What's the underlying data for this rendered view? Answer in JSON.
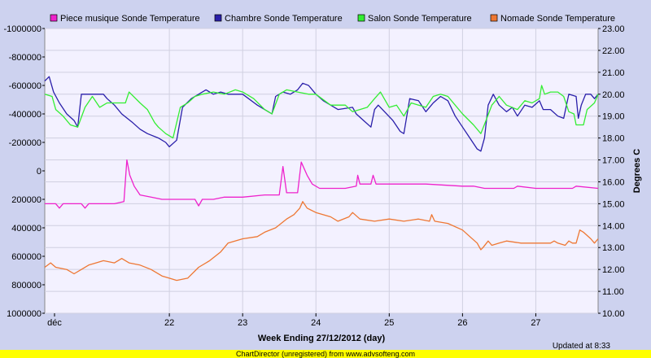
{
  "chart_data": {
    "type": "line",
    "title": "",
    "xlabel": "Week Ending 27/12/2012 (day)",
    "ylabel_left": "",
    "ylabel_right": "Degrees C",
    "x_ticks": [
      "déc",
      "22",
      "23",
      "24",
      "25",
      "26",
      "27"
    ],
    "x_range_days": [
      0.3,
      7.85
    ],
    "y_left_ticks": [
      "-1000000",
      "-800000",
      "-600000",
      "-400000",
      "-200000",
      "0",
      "200000",
      "400000",
      "600000",
      "800000",
      "1000000"
    ],
    "y_left_range": [
      -1000000,
      1000000
    ],
    "y_left_reversed": true,
    "y_right_ticks": [
      "10.00",
      "11.00",
      "12.00",
      "13.00",
      "14.00",
      "15.00",
      "16.00",
      "17.00",
      "18.00",
      "19.00",
      "20.00",
      "21.00",
      "22.00",
      "23.00"
    ],
    "y_right_range": [
      10,
      23
    ],
    "grid": true,
    "legend_position": "top",
    "updated_text": "Updated at 8:33",
    "series": [
      {
        "name": "Piece musique Sonde Temperature",
        "color": "#ee22cc",
        "points": [
          [
            0.3,
            15.0
          ],
          [
            0.45,
            15.0
          ],
          [
            0.5,
            14.8
          ],
          [
            0.55,
            15.0
          ],
          [
            0.8,
            15.0
          ],
          [
            0.85,
            14.8
          ],
          [
            0.9,
            15.0
          ],
          [
            1.1,
            15.0
          ],
          [
            1.25,
            15.0
          ],
          [
            1.38,
            15.1
          ],
          [
            1.42,
            17.0
          ],
          [
            1.46,
            16.3
          ],
          [
            1.52,
            15.8
          ],
          [
            1.6,
            15.4
          ],
          [
            1.75,
            15.3
          ],
          [
            1.9,
            15.2
          ],
          [
            2.2,
            15.2
          ],
          [
            2.35,
            15.2
          ],
          [
            2.4,
            14.9
          ],
          [
            2.45,
            15.2
          ],
          [
            2.6,
            15.2
          ],
          [
            2.75,
            15.3
          ],
          [
            3.0,
            15.3
          ],
          [
            3.3,
            15.4
          ],
          [
            3.5,
            15.4
          ],
          [
            3.55,
            16.7
          ],
          [
            3.6,
            15.5
          ],
          [
            3.75,
            15.5
          ],
          [
            3.8,
            16.9
          ],
          [
            3.88,
            16.3
          ],
          [
            3.95,
            15.9
          ],
          [
            4.05,
            15.7
          ],
          [
            4.4,
            15.7
          ],
          [
            4.55,
            15.8
          ],
          [
            4.57,
            16.3
          ],
          [
            4.6,
            15.9
          ],
          [
            4.75,
            15.9
          ],
          [
            4.78,
            16.3
          ],
          [
            4.82,
            15.9
          ],
          [
            5.0,
            15.9
          ],
          [
            5.5,
            15.9
          ],
          [
            6.0,
            15.8
          ],
          [
            6.15,
            15.8
          ],
          [
            6.3,
            15.7
          ],
          [
            6.7,
            15.7
          ],
          [
            6.75,
            15.8
          ],
          [
            7.0,
            15.7
          ],
          [
            7.2,
            15.7
          ],
          [
            7.5,
            15.7
          ],
          [
            7.55,
            15.8
          ],
          [
            7.85,
            15.7
          ]
        ]
      },
      {
        "name": "Chambre Sonde Temperature",
        "color": "#2a1faa",
        "points": [
          [
            0.3,
            20.6
          ],
          [
            0.36,
            20.8
          ],
          [
            0.42,
            20.1
          ],
          [
            0.5,
            19.6
          ],
          [
            0.6,
            19.1
          ],
          [
            0.7,
            18.8
          ],
          [
            0.75,
            18.5
          ],
          [
            0.8,
            20.0
          ],
          [
            0.95,
            20.0
          ],
          [
            1.1,
            20.0
          ],
          [
            1.15,
            19.8
          ],
          [
            1.25,
            19.5
          ],
          [
            1.35,
            19.1
          ],
          [
            1.5,
            18.7
          ],
          [
            1.6,
            18.4
          ],
          [
            1.7,
            18.2
          ],
          [
            1.85,
            18.0
          ],
          [
            1.95,
            17.8
          ],
          [
            2.0,
            17.6
          ],
          [
            2.1,
            17.9
          ],
          [
            2.18,
            19.4
          ],
          [
            2.3,
            19.8
          ],
          [
            2.5,
            20.2
          ],
          [
            2.6,
            20.0
          ],
          [
            2.7,
            20.1
          ],
          [
            2.8,
            20.0
          ],
          [
            3.0,
            20.0
          ],
          [
            3.2,
            19.5
          ],
          [
            3.35,
            19.2
          ],
          [
            3.4,
            19.1
          ],
          [
            3.45,
            19.9
          ],
          [
            3.55,
            20.1
          ],
          [
            3.65,
            20.0
          ],
          [
            3.75,
            20.2
          ],
          [
            3.82,
            20.5
          ],
          [
            3.9,
            20.4
          ],
          [
            4.0,
            20.0
          ],
          [
            4.1,
            19.7
          ],
          [
            4.3,
            19.3
          ],
          [
            4.5,
            19.4
          ],
          [
            4.55,
            19.1
          ],
          [
            4.65,
            18.8
          ],
          [
            4.75,
            18.5
          ],
          [
            4.8,
            19.3
          ],
          [
            4.85,
            19.5
          ],
          [
            5.05,
            18.8
          ],
          [
            5.15,
            18.3
          ],
          [
            5.2,
            18.2
          ],
          [
            5.28,
            19.8
          ],
          [
            5.4,
            19.7
          ],
          [
            5.5,
            19.2
          ],
          [
            5.6,
            19.6
          ],
          [
            5.7,
            19.9
          ],
          [
            5.8,
            19.7
          ],
          [
            5.9,
            19.0
          ],
          [
            6.0,
            18.5
          ],
          [
            6.1,
            18.0
          ],
          [
            6.2,
            17.5
          ],
          [
            6.25,
            17.4
          ],
          [
            6.3,
            18.0
          ],
          [
            6.35,
            19.5
          ],
          [
            6.42,
            20.0
          ],
          [
            6.5,
            19.5
          ],
          [
            6.6,
            19.2
          ],
          [
            6.68,
            19.4
          ],
          [
            6.75,
            19.0
          ],
          [
            6.85,
            19.5
          ],
          [
            6.95,
            19.4
          ],
          [
            7.05,
            19.7
          ],
          [
            7.1,
            19.3
          ],
          [
            7.2,
            19.3
          ],
          [
            7.3,
            19.0
          ],
          [
            7.38,
            18.9
          ],
          [
            7.45,
            20.0
          ],
          [
            7.55,
            19.9
          ],
          [
            7.58,
            18.9
          ],
          [
            7.62,
            19.5
          ],
          [
            7.68,
            20.0
          ],
          [
            7.75,
            20.0
          ],
          [
            7.8,
            19.8
          ],
          [
            7.85,
            20.0
          ]
        ]
      },
      {
        "name": "Salon Sonde Temperature",
        "color": "#33ee33",
        "points": [
          [
            0.3,
            20.0
          ],
          [
            0.4,
            19.9
          ],
          [
            0.45,
            19.3
          ],
          [
            0.55,
            19.0
          ],
          [
            0.65,
            18.6
          ],
          [
            0.75,
            18.5
          ],
          [
            0.85,
            19.4
          ],
          [
            0.95,
            19.9
          ],
          [
            1.05,
            19.4
          ],
          [
            1.15,
            19.6
          ],
          [
            1.3,
            19.6
          ],
          [
            1.4,
            19.6
          ],
          [
            1.45,
            20.1
          ],
          [
            1.6,
            19.6
          ],
          [
            1.7,
            19.3
          ],
          [
            1.8,
            18.7
          ],
          [
            1.85,
            18.5
          ],
          [
            1.95,
            18.2
          ],
          [
            2.05,
            18.0
          ],
          [
            2.15,
            19.4
          ],
          [
            2.25,
            19.6
          ],
          [
            2.35,
            19.9
          ],
          [
            2.45,
            20.0
          ],
          [
            2.6,
            20.1
          ],
          [
            2.75,
            20.0
          ],
          [
            2.9,
            20.2
          ],
          [
            3.0,
            20.1
          ],
          [
            3.15,
            19.8
          ],
          [
            3.3,
            19.3
          ],
          [
            3.4,
            19.1
          ],
          [
            3.5,
            20.0
          ],
          [
            3.6,
            20.2
          ],
          [
            3.75,
            20.1
          ],
          [
            3.9,
            20.0
          ],
          [
            4.0,
            20.0
          ],
          [
            4.2,
            19.5
          ],
          [
            4.4,
            19.5
          ],
          [
            4.5,
            19.2
          ],
          [
            4.6,
            19.3
          ],
          [
            4.7,
            19.4
          ],
          [
            4.8,
            19.8
          ],
          [
            4.88,
            20.1
          ],
          [
            5.0,
            19.4
          ],
          [
            5.1,
            19.5
          ],
          [
            5.2,
            19.0
          ],
          [
            5.3,
            19.6
          ],
          [
            5.5,
            19.4
          ],
          [
            5.6,
            19.9
          ],
          [
            5.7,
            20.0
          ],
          [
            5.8,
            19.9
          ],
          [
            6.0,
            19.1
          ],
          [
            6.15,
            18.6
          ],
          [
            6.25,
            18.2
          ],
          [
            6.32,
            18.8
          ],
          [
            6.4,
            19.5
          ],
          [
            6.5,
            19.9
          ],
          [
            6.6,
            19.5
          ],
          [
            6.75,
            19.3
          ],
          [
            6.85,
            19.7
          ],
          [
            6.95,
            19.6
          ],
          [
            7.05,
            19.8
          ],
          [
            7.08,
            20.4
          ],
          [
            7.12,
            20.0
          ],
          [
            7.2,
            20.1
          ],
          [
            7.3,
            20.1
          ],
          [
            7.38,
            19.9
          ],
          [
            7.45,
            19.2
          ],
          [
            7.52,
            19.1
          ],
          [
            7.55,
            18.6
          ],
          [
            7.65,
            18.6
          ],
          [
            7.7,
            19.3
          ],
          [
            7.8,
            19.6
          ],
          [
            7.85,
            20.0
          ]
        ]
      },
      {
        "name": "Nomade Sonde Temperature",
        "color": "#ee7733",
        "points": [
          [
            0.3,
            12.1
          ],
          [
            0.38,
            12.3
          ],
          [
            0.45,
            12.1
          ],
          [
            0.6,
            12.0
          ],
          [
            0.7,
            11.8
          ],
          [
            0.8,
            12.0
          ],
          [
            0.9,
            12.2
          ],
          [
            1.0,
            12.3
          ],
          [
            1.1,
            12.4
          ],
          [
            1.25,
            12.3
          ],
          [
            1.35,
            12.5
          ],
          [
            1.45,
            12.3
          ],
          [
            1.6,
            12.2
          ],
          [
            1.75,
            12.0
          ],
          [
            1.9,
            11.7
          ],
          [
            2.0,
            11.6
          ],
          [
            2.1,
            11.5
          ],
          [
            2.25,
            11.6
          ],
          [
            2.4,
            12.1
          ],
          [
            2.55,
            12.4
          ],
          [
            2.7,
            12.8
          ],
          [
            2.8,
            13.2
          ],
          [
            3.0,
            13.4
          ],
          [
            3.2,
            13.5
          ],
          [
            3.3,
            13.7
          ],
          [
            3.45,
            13.9
          ],
          [
            3.6,
            14.3
          ],
          [
            3.7,
            14.5
          ],
          [
            3.78,
            14.8
          ],
          [
            3.82,
            15.1
          ],
          [
            3.88,
            14.8
          ],
          [
            4.0,
            14.6
          ],
          [
            4.2,
            14.4
          ],
          [
            4.3,
            14.2
          ],
          [
            4.45,
            14.4
          ],
          [
            4.5,
            14.6
          ],
          [
            4.6,
            14.3
          ],
          [
            4.8,
            14.2
          ],
          [
            5.0,
            14.3
          ],
          [
            5.2,
            14.2
          ],
          [
            5.4,
            14.3
          ],
          [
            5.55,
            14.2
          ],
          [
            5.58,
            14.5
          ],
          [
            5.62,
            14.2
          ],
          [
            5.8,
            14.1
          ],
          [
            6.0,
            13.8
          ],
          [
            6.1,
            13.5
          ],
          [
            6.2,
            13.2
          ],
          [
            6.25,
            12.9
          ],
          [
            6.28,
            13.0
          ],
          [
            6.35,
            13.3
          ],
          [
            6.4,
            13.1
          ],
          [
            6.5,
            13.2
          ],
          [
            6.6,
            13.3
          ],
          [
            6.8,
            13.2
          ],
          [
            7.0,
            13.2
          ],
          [
            7.2,
            13.2
          ],
          [
            7.25,
            13.3
          ],
          [
            7.3,
            13.2
          ],
          [
            7.4,
            13.1
          ],
          [
            7.45,
            13.3
          ],
          [
            7.5,
            13.2
          ],
          [
            7.55,
            13.2
          ],
          [
            7.6,
            13.8
          ],
          [
            7.65,
            13.7
          ],
          [
            7.75,
            13.4
          ],
          [
            7.8,
            13.2
          ],
          [
            7.85,
            13.4
          ]
        ]
      }
    ]
  },
  "footer_text": "ChartDirector (unregistered) from www.advsofteng.com"
}
